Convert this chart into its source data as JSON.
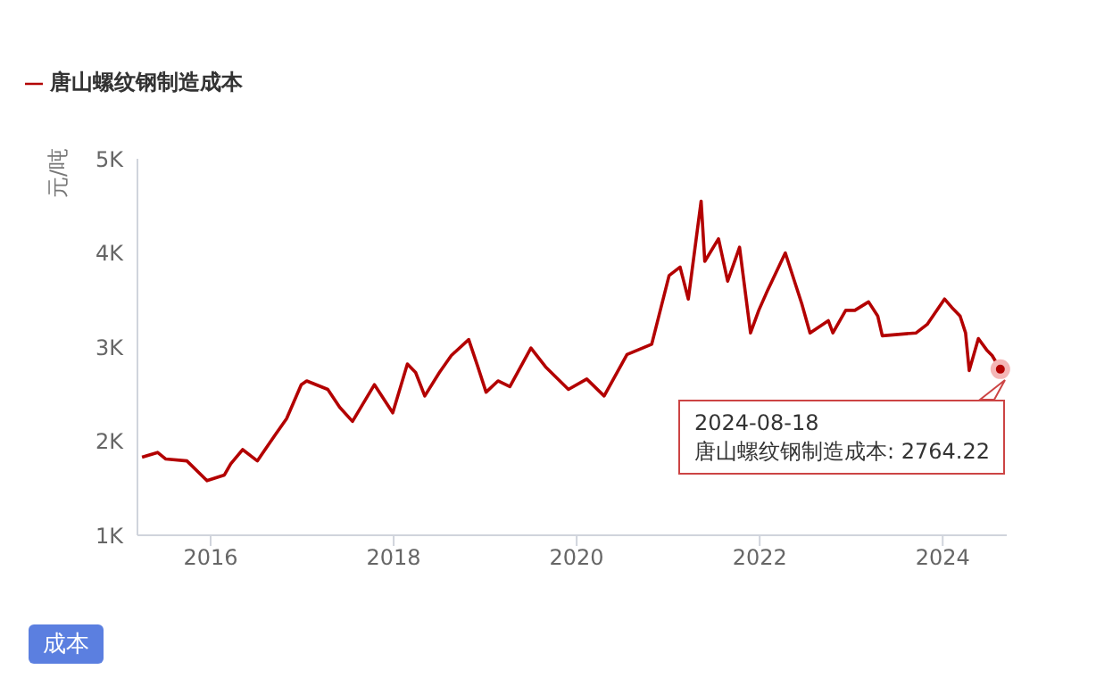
{
  "chart_data": {
    "type": "line",
    "ylabel": "元/吨",
    "x": [
      2015.25,
      2015.42,
      2015.51,
      2015.74,
      2015.96,
      2016.15,
      2016.22,
      2016.35,
      2016.51,
      2016.7,
      2016.83,
      2016.99,
      2017.05,
      2017.28,
      2017.41,
      2017.55,
      2017.79,
      2017.99,
      2018.15,
      2018.24,
      2018.34,
      2018.5,
      2018.63,
      2018.82,
      2018.92,
      2019.01,
      2019.14,
      2019.27,
      2019.5,
      2019.66,
      2019.91,
      2020.11,
      2020.3,
      2020.55,
      2020.82,
      2021.01,
      2021.13,
      2021.22,
      2021.36,
      2021.4,
      2021.55,
      2021.65,
      2021.78,
      2021.9,
      2021.99,
      2022.09,
      2022.28,
      2022.46,
      2022.55,
      2022.75,
      2022.8,
      2022.94,
      2023.04,
      2023.19,
      2023.29,
      2023.34,
      2023.71,
      2023.83,
      2024.02,
      2024.1,
      2024.19,
      2024.25,
      2024.29,
      2024.39,
      2024.48,
      2024.54,
      2024.63
    ],
    "series": [
      {
        "name": "唐山螺纹钢制造成本",
        "color": "#b30000",
        "values": [
          1830,
          1880,
          1810,
          1790,
          1580,
          1640,
          1760,
          1910,
          1790,
          2060,
          2240,
          2600,
          2640,
          2550,
          2360,
          2210,
          2600,
          2300,
          2820,
          2730,
          2480,
          2730,
          2910,
          3080,
          2790,
          2520,
          2640,
          2580,
          2990,
          2790,
          2550,
          2660,
          2480,
          2920,
          3030,
          3760,
          3850,
          3510,
          4550,
          3910,
          4150,
          3700,
          4060,
          3150,
          3390,
          3610,
          4000,
          3460,
          3150,
          3280,
          3150,
          3390,
          3390,
          3480,
          3330,
          3120,
          3150,
          3240,
          3510,
          3420,
          3330,
          3150,
          2750,
          3090,
          2970,
          2910,
          2764.22
        ]
      }
    ],
    "xlim": [
      2015.2,
      2024.7
    ],
    "xticks": [
      2016,
      2018,
      2020,
      2022,
      2024
    ],
    "ylim": [
      1000,
      5000
    ],
    "yticks": [
      {
        "value": 1000,
        "label": "1K"
      },
      {
        "value": 2000,
        "label": "2K"
      },
      {
        "value": 3000,
        "label": "3K"
      },
      {
        "value": 4000,
        "label": "4K"
      },
      {
        "value": 5000,
        "label": "5K"
      }
    ],
    "legend": "top left",
    "marker": "none",
    "line_style": "solid",
    "annotations": [
      {
        "text": "2024-08-18\n唐山螺纹钢制造成本: 2764.22",
        "x": 2024.63,
        "y": 2764.22
      },
      "成本"
    ]
  }
}
